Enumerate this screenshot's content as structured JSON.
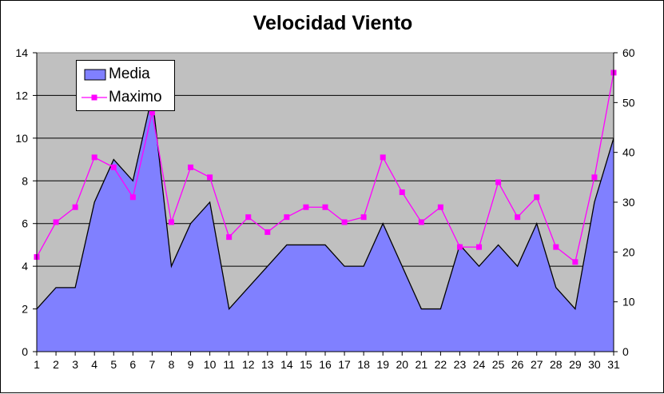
{
  "chart_data": {
    "type": "area",
    "title": "Velocidad Viento",
    "x": [
      1,
      2,
      3,
      4,
      5,
      6,
      7,
      8,
      9,
      10,
      11,
      12,
      13,
      14,
      15,
      16,
      17,
      18,
      19,
      20,
      21,
      22,
      23,
      24,
      25,
      26,
      27,
      28,
      29,
      30,
      31
    ],
    "series": [
      {
        "name": "Media",
        "type": "area",
        "axis": "left",
        "color": "#8080FF",
        "values": [
          2,
          3,
          3,
          7,
          9,
          8,
          12,
          4,
          6,
          7,
          2,
          3,
          4,
          5,
          5,
          5,
          4,
          4,
          6,
          4,
          2,
          2,
          5,
          4,
          5,
          4,
          6,
          3,
          2,
          7,
          10
        ]
      },
      {
        "name": "Maximo",
        "type": "line",
        "axis": "right",
        "color": "#FF00FF",
        "values": [
          19,
          26,
          29,
          39,
          37,
          31,
          48,
          26,
          37,
          35,
          23,
          27,
          24,
          27,
          29,
          29,
          26,
          27,
          39,
          32,
          26,
          29,
          21,
          21,
          34,
          27,
          31,
          21,
          18,
          35,
          56
        ]
      }
    ],
    "y_left": {
      "ylim": [
        0,
        14
      ],
      "ticks": [
        0,
        2,
        4,
        6,
        8,
        10,
        12,
        14
      ]
    },
    "y_right": {
      "ylim": [
        0,
        60
      ],
      "ticks": [
        0,
        10,
        20,
        30,
        40,
        50,
        60
      ]
    },
    "grid": true,
    "plot_background": "#C0C0C0",
    "legend": "top-left"
  }
}
